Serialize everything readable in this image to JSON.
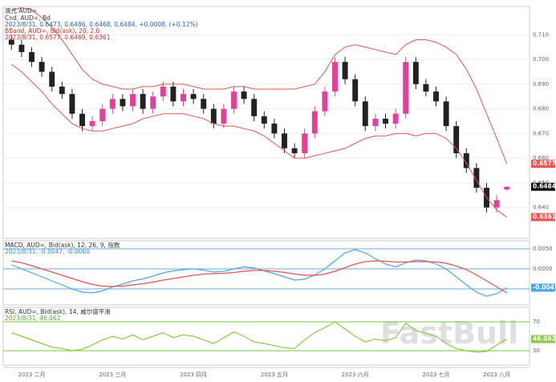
{
  "watermark": "FastBull",
  "chart_data": [
    {
      "type": "candlestick",
      "title": "澳元 AUD=",
      "legend": [
        {
          "text": "Cnd, AUD=, Bd",
          "color": "#333333"
        },
        {
          "text": "2023/8/31, 0.6473, 0.6486, 0.6468, 0.6484, +0.0008, (+0.12%)",
          "color": "#2b5fb4"
        },
        {
          "text": "BBand, AUD=, Bid(ask), 20, 2.0",
          "color": "#d03030"
        },
        {
          "text": "2023/8/31, 0.6577, 0.6469, 0.6361",
          "color": "#d03030"
        }
      ],
      "categories": [
        null,
        null,
        "2023 二月",
        null,
        null,
        null,
        null,
        null,
        null,
        null,
        "2023 三月",
        null,
        null,
        null,
        null,
        null,
        null,
        null,
        "2023 四月",
        null,
        null,
        null,
        null,
        null,
        null,
        null,
        "2023 五月",
        null,
        null,
        null,
        null,
        null,
        null,
        null,
        "2023 六月",
        null,
        null,
        null,
        null,
        null,
        null,
        null,
        "2023 七月",
        null,
        null,
        null,
        null,
        null,
        "2023 八月",
        null
      ],
      "open": [
        0.708,
        0.706,
        0.703,
        0.699,
        0.695,
        0.689,
        0.686,
        0.678,
        0.673,
        0.675,
        0.68,
        0.684,
        0.681,
        0.686,
        0.68,
        0.685,
        0.689,
        0.683,
        0.686,
        0.684,
        0.68,
        0.674,
        0.68,
        0.687,
        0.684,
        0.677,
        0.674,
        0.67,
        0.664,
        0.662,
        0.67,
        0.679,
        0.687,
        0.699,
        0.692,
        0.683,
        0.673,
        0.676,
        0.674,
        0.678,
        0.699,
        0.69,
        0.687,
        0.683,
        0.673,
        0.662,
        0.656,
        0.648,
        0.64,
        0.6473
      ],
      "high": [
        0.71,
        0.708,
        0.705,
        0.701,
        0.697,
        0.691,
        0.688,
        0.68,
        0.677,
        0.682,
        0.686,
        0.686,
        0.688,
        0.688,
        0.687,
        0.691,
        0.691,
        0.688,
        0.688,
        0.686,
        0.682,
        0.682,
        0.689,
        0.689,
        0.686,
        0.679,
        0.676,
        0.672,
        0.666,
        0.672,
        0.681,
        0.689,
        0.701,
        0.701,
        0.694,
        0.685,
        0.678,
        0.678,
        0.68,
        0.701,
        0.701,
        0.692,
        0.689,
        0.685,
        0.675,
        0.664,
        0.658,
        0.65,
        0.645,
        0.6486
      ],
      "low": [
        0.704,
        0.701,
        0.697,
        0.693,
        0.687,
        0.684,
        0.676,
        0.671,
        0.671,
        0.673,
        0.678,
        0.679,
        0.679,
        0.678,
        0.678,
        0.683,
        0.681,
        0.681,
        0.682,
        0.678,
        0.672,
        0.672,
        0.678,
        0.682,
        0.675,
        0.672,
        0.668,
        0.662,
        0.66,
        0.66,
        0.668,
        0.677,
        0.685,
        0.69,
        0.681,
        0.671,
        0.671,
        0.672,
        0.672,
        0.676,
        0.688,
        0.685,
        0.681,
        0.671,
        0.66,
        0.654,
        0.646,
        0.638,
        0.638,
        0.6468
      ],
      "close": [
        0.706,
        0.703,
        0.699,
        0.695,
        0.689,
        0.686,
        0.678,
        0.673,
        0.675,
        0.68,
        0.684,
        0.681,
        0.686,
        0.68,
        0.685,
        0.689,
        0.683,
        0.686,
        0.684,
        0.68,
        0.674,
        0.68,
        0.687,
        0.684,
        0.677,
        0.674,
        0.67,
        0.664,
        0.662,
        0.67,
        0.679,
        0.687,
        0.699,
        0.692,
        0.683,
        0.673,
        0.676,
        0.674,
        0.678,
        0.699,
        0.69,
        0.687,
        0.683,
        0.673,
        0.662,
        0.656,
        0.648,
        0.64,
        0.643,
        0.6484
      ],
      "up_color": "#e4409a",
      "down_color": "#222222",
      "overlays": [
        {
          "color": "#e8554e",
          "values": [
            0.72,
            0.721,
            0.72,
            0.717,
            0.713,
            0.708,
            0.702,
            0.696,
            0.692,
            0.69,
            0.689,
            0.688,
            0.688,
            0.689,
            0.689,
            0.69,
            0.69,
            0.69,
            0.689,
            0.688,
            0.688,
            0.688,
            0.689,
            0.689,
            0.688,
            0.688,
            0.688,
            0.688,
            0.688,
            0.689,
            0.69,
            0.695,
            0.702,
            0.705,
            0.706,
            0.705,
            0.704,
            0.703,
            0.702,
            0.706,
            0.708,
            0.708,
            0.707,
            0.705,
            0.702,
            0.696,
            0.688,
            0.678,
            0.668,
            0.6577
          ]
        },
        {
          "color": "#e8554e",
          "values": [
            0.698,
            0.695,
            0.691,
            0.687,
            0.682,
            0.678,
            0.674,
            0.672,
            0.671,
            0.671,
            0.672,
            0.673,
            0.674,
            0.676,
            0.677,
            0.678,
            0.678,
            0.678,
            0.677,
            0.676,
            0.674,
            0.673,
            0.673,
            0.672,
            0.671,
            0.669,
            0.666,
            0.663,
            0.66,
            0.66,
            0.661,
            0.662,
            0.663,
            0.664,
            0.666,
            0.668,
            0.669,
            0.669,
            0.67,
            0.67,
            0.669,
            0.67,
            0.67,
            0.668,
            0.664,
            0.658,
            0.651,
            0.644,
            0.639,
            0.6361
          ]
        }
      ],
      "ylim": [
        0.6275,
        0.7215
      ],
      "yticks": [
        {
          "value": 0.64,
          "label": "0.640"
        },
        {
          "value": 0.65,
          "label": "0.650"
        },
        {
          "value": 0.66,
          "label": "0.660"
        },
        {
          "value": 0.67,
          "label": "0.670"
        },
        {
          "value": 0.68,
          "label": "0.680"
        },
        {
          "value": 0.69,
          "label": "0.690"
        },
        {
          "value": 0.7,
          "label": "0.700"
        },
        {
          "value": 0.71,
          "label": "0.710"
        }
      ],
      "grid_color": "#eeeeee"
    },
    {
      "type": "line",
      "legend": [
        {
          "text": "MACD, AUD=, Bid(ask), 12, 26, 9, 指数",
          "color": "#333333"
        },
        {
          "text": "2023/8/31, -0.0047, -0.0060",
          "color": "#2b8fd8"
        }
      ],
      "series": [
        {
          "color": "#49a8e8",
          "values": [
            0.001,
            0,
            -0.001,
            -0.002,
            -0.003,
            -0.004,
            -0.005,
            -0.0058,
            -0.006,
            -0.0055,
            -0.0045,
            -0.0038,
            -0.003,
            -0.0025,
            -0.0018,
            -0.001,
            -0.0005,
            -0.0002,
            0,
            -0.0003,
            -0.0008,
            -0.0006,
            0,
            0.0005,
            0.0002,
            -0.0005,
            -0.0012,
            -0.002,
            -0.0028,
            -0.0026,
            -0.0015,
            0,
            0.002,
            0.004,
            0.0048,
            0.004,
            0.0025,
            0.0012,
            0.0005,
            0.0015,
            0.0022,
            0.002,
            0.0012,
            0,
            -0.002,
            -0.004,
            -0.0058,
            -0.0068,
            -0.0062,
            -0.0047
          ]
        },
        {
          "color": "#e8554e",
          "values": [
            0.002,
            0.0015,
            0.0008,
            0,
            -0.0008,
            -0.0016,
            -0.0024,
            -0.0032,
            -0.0039,
            -0.0043,
            -0.0044,
            -0.0043,
            -0.004,
            -0.0037,
            -0.0033,
            -0.0028,
            -0.0024,
            -0.002,
            -0.0016,
            -0.0013,
            -0.0012,
            -0.0011,
            -0.0009,
            -0.0006,
            -0.0004,
            -0.0004,
            -0.0006,
            -0.0009,
            -0.0013,
            -0.0016,
            -0.0016,
            -0.0013,
            -0.0006,
            0.0003,
            0.0012,
            0.0018,
            0.002,
            0.0019,
            0.0017,
            0.0017,
            0.0018,
            0.0018,
            0.0017,
            0.0014,
            0.0007,
            -0.0002,
            -0.0015,
            -0.003,
            -0.0045,
            -0.006
          ]
        }
      ],
      "ylim": [
        -0.009,
        0.007
      ],
      "yticks": [
        {
          "value": -0.005,
          "label": "-0.0050"
        },
        {
          "value": 0,
          "label": "0.0000"
        },
        {
          "value": 0.005,
          "label": "0.0050"
        }
      ],
      "grid_color": "#6fa8dc"
    },
    {
      "type": "line",
      "legend": [
        {
          "text": "RSI, AUD=, Bid(ask), 14, 威尔德平滑",
          "color": "#333333"
        },
        {
          "text": "2023/8/31, 46.062",
          "color": "#5aa83a"
        }
      ],
      "series": [
        {
          "color": "#8cc94a",
          "values": [
            55,
            50,
            45,
            40,
            35,
            33,
            30,
            32,
            38,
            45,
            50,
            46,
            52,
            45,
            50,
            55,
            48,
            52,
            50,
            45,
            40,
            48,
            56,
            50,
            42,
            40,
            37,
            34,
            33,
            45,
            55,
            62,
            70,
            60,
            50,
            42,
            46,
            44,
            48,
            68,
            58,
            54,
            50,
            40,
            33,
            30,
            28,
            29,
            38,
            46.062
          ]
        }
      ],
      "ylim": [
        10,
        90
      ],
      "yticks": [
        30,
        70
      ],
      "grid_color": "#7ac943"
    }
  ]
}
